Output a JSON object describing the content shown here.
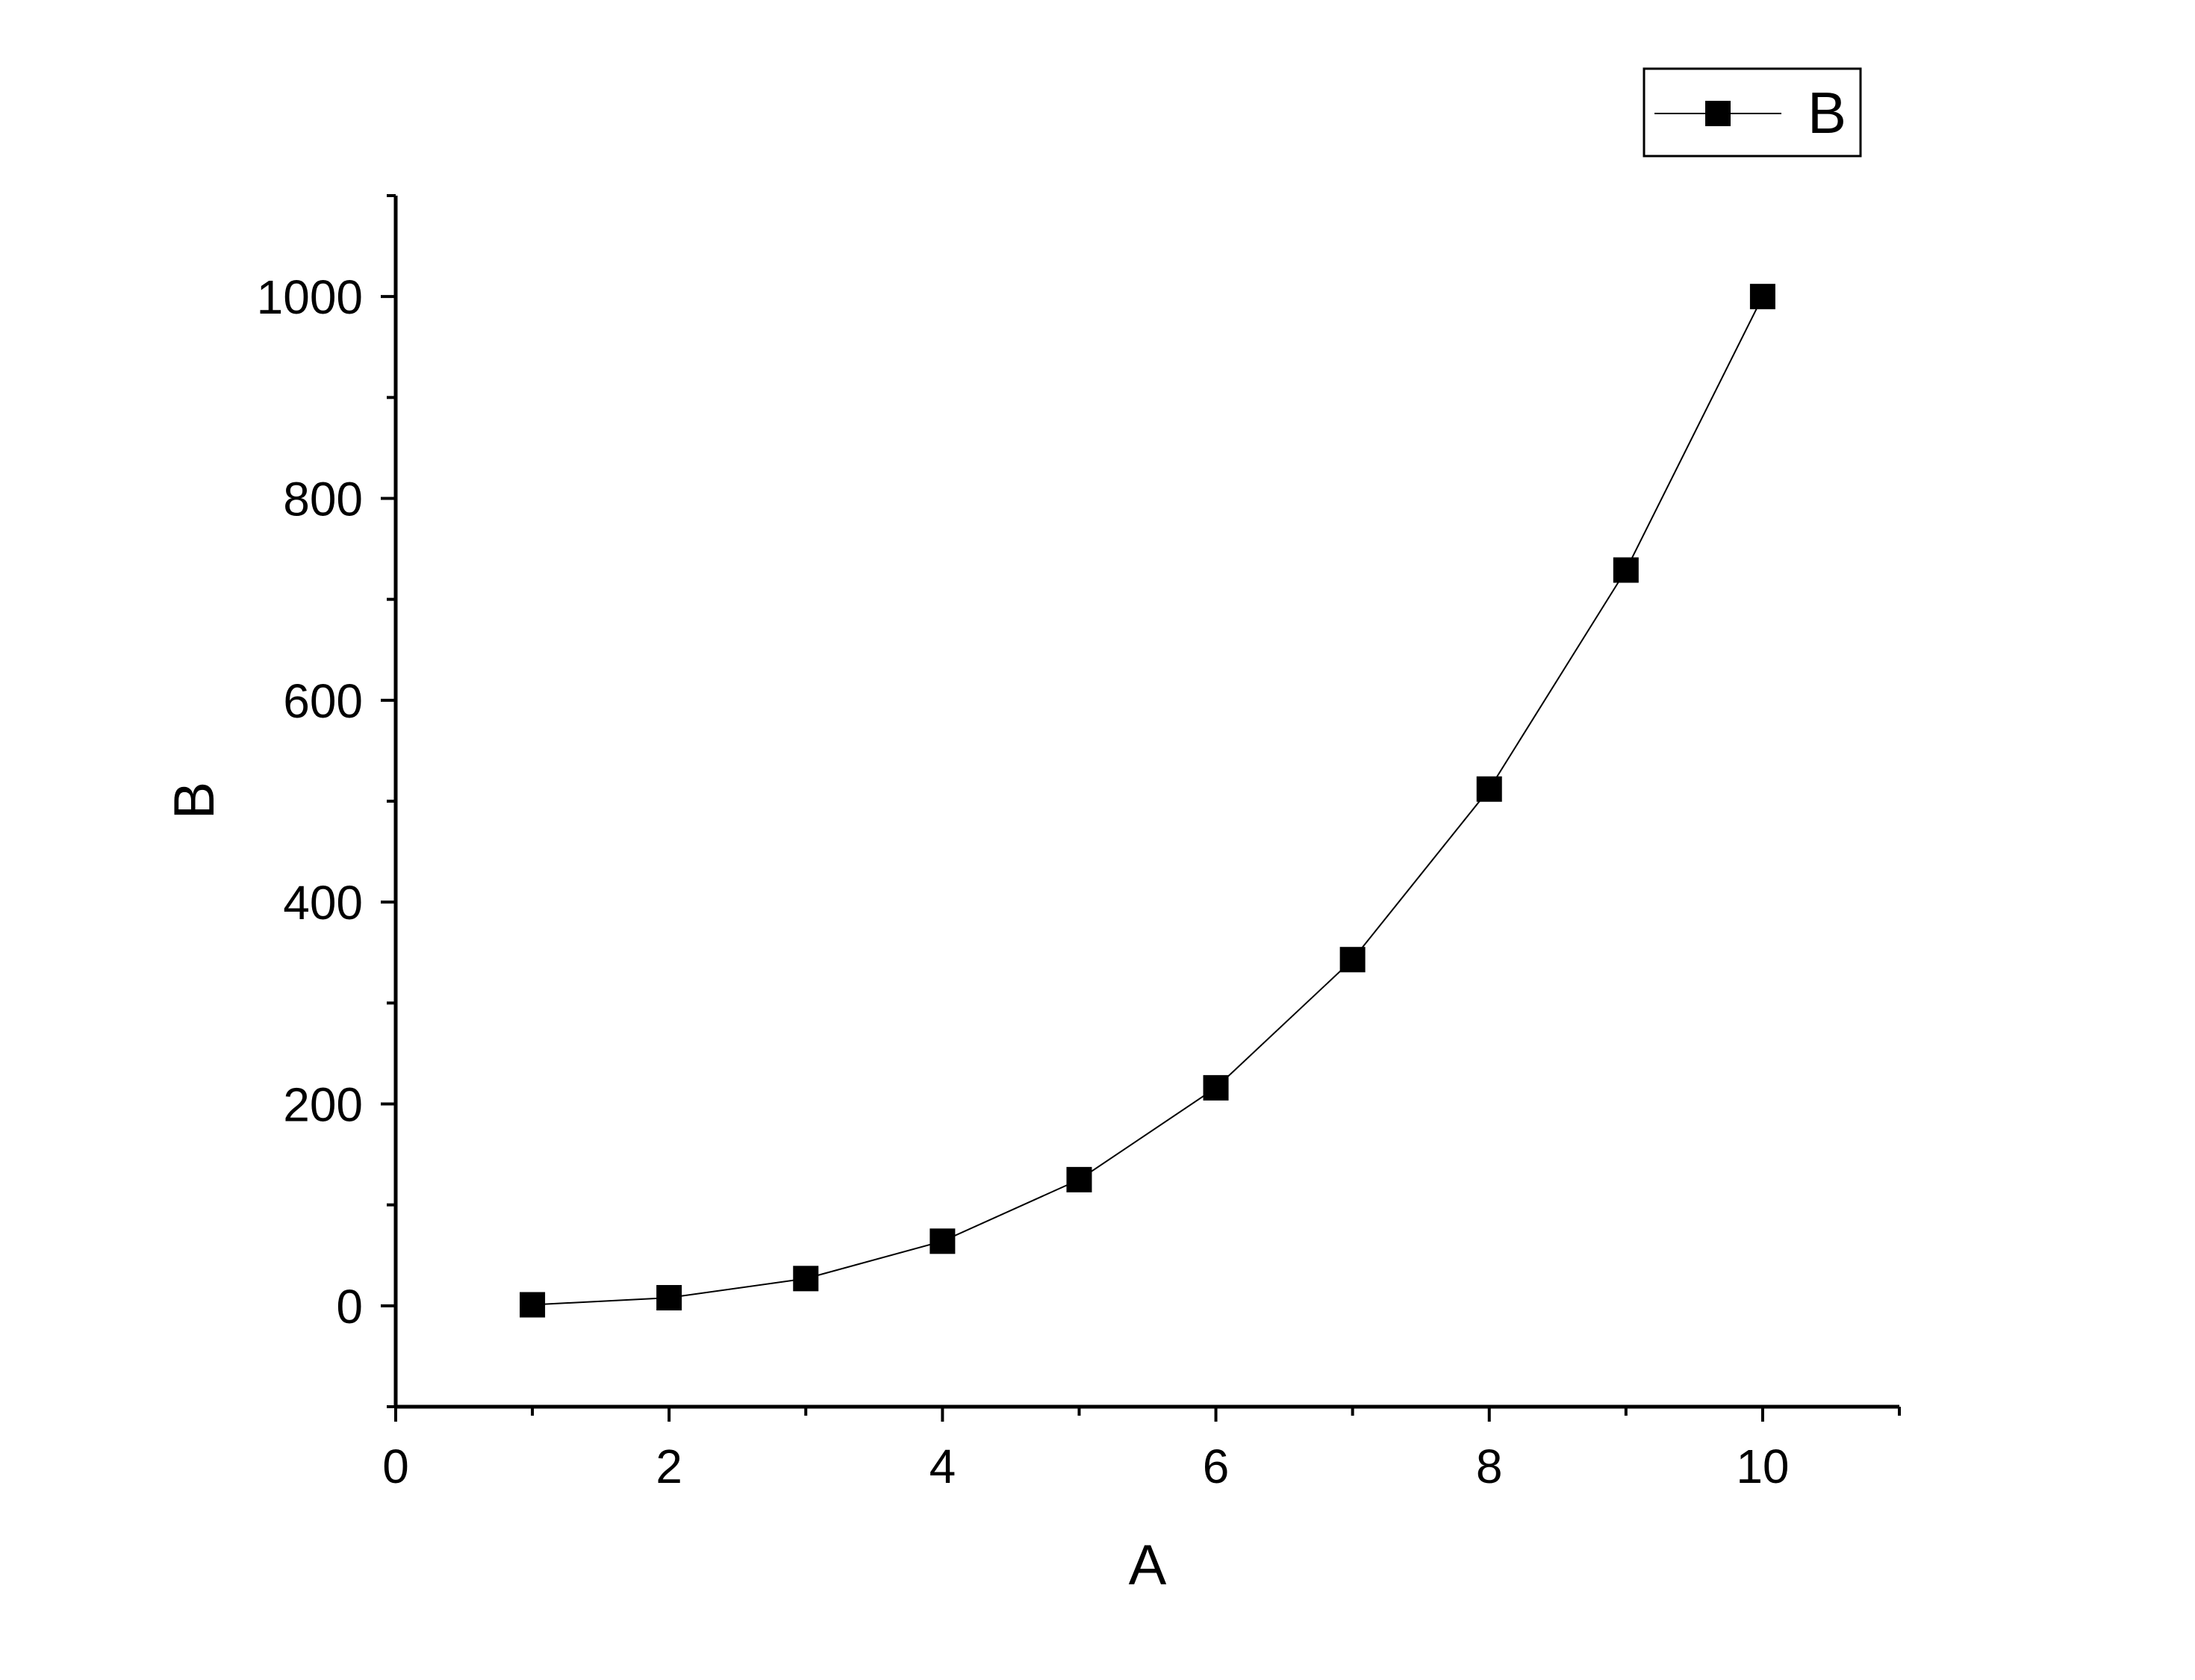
{
  "chart_data": {
    "type": "line",
    "xlabel": "A",
    "ylabel": "B",
    "xlim": [
      0,
      11
    ],
    "ylim": [
      -100,
      1100
    ],
    "x_ticks": [
      0,
      2,
      4,
      6,
      8,
      10
    ],
    "y_ticks": [
      0,
      200,
      400,
      600,
      800,
      1000
    ],
    "x": [
      1,
      2,
      3,
      4,
      5,
      6,
      7,
      8,
      9,
      10
    ],
    "series": [
      {
        "name": "B",
        "marker": "square",
        "color": "#000000",
        "values": [
          1,
          8,
          27,
          64,
          125,
          216,
          343,
          512,
          729,
          1000
        ]
      }
    ],
    "legend": {
      "position": "top-right",
      "label": "B"
    },
    "grid": false
  }
}
